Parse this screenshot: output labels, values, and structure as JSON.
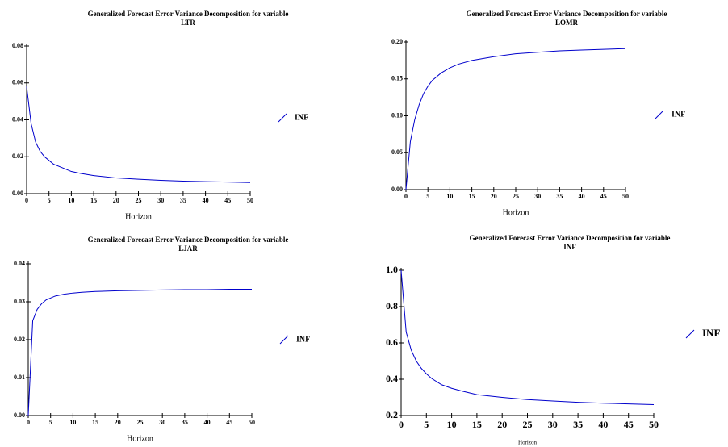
{
  "chart_data": [
    {
      "type": "line",
      "title": [
        "Generalized Forecast Error Variance Decomposition for variable",
        "LTR"
      ],
      "x_label": "Horizon",
      "x": [
        0,
        1,
        2,
        3,
        4,
        5,
        6,
        8,
        10,
        12,
        15,
        20,
        25,
        30,
        35,
        40,
        45,
        50
      ],
      "series": [
        {
          "name": "INF",
          "color": "#0000cc",
          "values": [
            0.058,
            0.038,
            0.028,
            0.023,
            0.02,
            0.018,
            0.016,
            0.014,
            0.012,
            0.011,
            0.0098,
            0.0085,
            0.0078,
            0.0072,
            0.0068,
            0.0065,
            0.0063,
            0.006
          ]
        }
      ],
      "xlim": [
        0,
        50
      ],
      "xticks": [
        0,
        5,
        10,
        15,
        20,
        25,
        30,
        35,
        40,
        45,
        50
      ],
      "ylim": [
        0,
        0.08
      ],
      "yticks": [
        {
          "value": 0,
          "label": "0.00"
        },
        {
          "value": 0.02,
          "label": "0.02"
        },
        {
          "value": 0.04,
          "label": "0.04"
        },
        {
          "value": 0.06,
          "label": "0.06"
        },
        {
          "value": 0.08,
          "label": "0.08"
        }
      ],
      "legend": "right"
    },
    {
      "type": "line",
      "title": [
        "Generalized Forecast Error Variance Decomposition for variable",
        "LOMR"
      ],
      "x_label": "Horizon",
      "x": [
        0,
        1,
        2,
        3,
        4,
        5,
        6,
        8,
        10,
        12,
        15,
        20,
        25,
        30,
        35,
        40,
        45,
        50
      ],
      "series": [
        {
          "name": "INF",
          "color": "#0000cc",
          "values": [
            0.0,
            0.065,
            0.095,
            0.115,
            0.13,
            0.14,
            0.148,
            0.158,
            0.165,
            0.17,
            0.175,
            0.18,
            0.184,
            0.186,
            0.188,
            0.189,
            0.19,
            0.191
          ]
        }
      ],
      "xlim": [
        0,
        50
      ],
      "xticks": [
        0,
        5,
        10,
        15,
        20,
        25,
        30,
        35,
        40,
        45,
        50
      ],
      "ylim": [
        0,
        0.2
      ],
      "yticks": [
        {
          "value": 0,
          "label": "0.00"
        },
        {
          "value": 0.05,
          "label": "0.05"
        },
        {
          "value": 0.1,
          "label": "0.10"
        },
        {
          "value": 0.15,
          "label": "0.15"
        },
        {
          "value": 0.2,
          "label": "0.20"
        }
      ],
      "legend": "right"
    },
    {
      "type": "line",
      "title": [
        "Generalized Forecast Error Variance Decomposition for variable",
        "LJAR"
      ],
      "x_label": "Horizon",
      "x": [
        0,
        1,
        2,
        3,
        4,
        5,
        6,
        8,
        10,
        12,
        15,
        20,
        25,
        30,
        35,
        40,
        45,
        50
      ],
      "series": [
        {
          "name": "INF",
          "color": "#0000cc",
          "values": [
            0.0,
            0.025,
            0.028,
            0.0295,
            0.0305,
            0.031,
            0.0315,
            0.032,
            0.0323,
            0.0325,
            0.0327,
            0.0329,
            0.033,
            0.0331,
            0.0332,
            0.0332,
            0.0333,
            0.0333
          ]
        }
      ],
      "xlim": [
        0,
        50
      ],
      "xticks": [
        0,
        5,
        10,
        15,
        20,
        25,
        30,
        35,
        40,
        45,
        50
      ],
      "ylim": [
        0,
        0.04
      ],
      "yticks": [
        {
          "value": 0,
          "label": "0.00"
        },
        {
          "value": 0.01,
          "label": "0.01"
        },
        {
          "value": 0.02,
          "label": "0.02"
        },
        {
          "value": 0.03,
          "label": "0.03"
        },
        {
          "value": 0.04,
          "label": "0.04"
        }
      ],
      "legend": "right"
    },
    {
      "type": "line",
      "title": [
        "Generalized Forecast Error Variance Decomposition for variable",
        "INF"
      ],
      "x_label": "Horizon",
      "x": [
        0,
        1,
        2,
        3,
        4,
        5,
        6,
        8,
        10,
        12,
        15,
        20,
        25,
        30,
        35,
        40,
        45,
        50
      ],
      "series": [
        {
          "name": "INF",
          "color": "#0000cc",
          "values": [
            1.0,
            0.66,
            0.56,
            0.5,
            0.46,
            0.43,
            0.405,
            0.37,
            0.35,
            0.335,
            0.315,
            0.3,
            0.288,
            0.28,
            0.273,
            0.268,
            0.264,
            0.26
          ]
        }
      ],
      "xlim": [
        0,
        50
      ],
      "xticks": [
        0,
        5,
        10,
        15,
        20,
        25,
        30,
        35,
        40,
        45,
        50
      ],
      "ylim": [
        0.2,
        1.0
      ],
      "yticks": [
        {
          "value": 0.2,
          "label": "0.2"
        },
        {
          "value": 0.4,
          "label": "0.4"
        },
        {
          "value": 0.6,
          "label": "0.6"
        },
        {
          "value": 0.8,
          "label": "0.8"
        },
        {
          "value": 1.0,
          "label": "1.0"
        }
      ],
      "legend": "right"
    }
  ]
}
